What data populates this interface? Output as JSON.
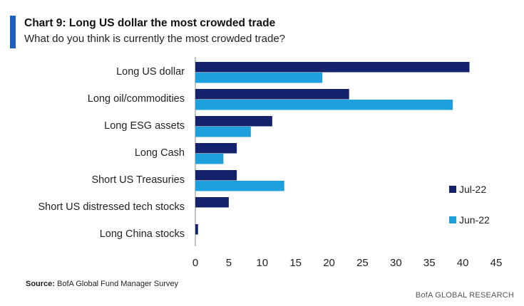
{
  "header": {
    "title": "Chart 9: Long US dollar the most crowded trade",
    "subtitle": "What do you think is currently the most crowded trade?"
  },
  "footer": {
    "source_label": "Source:",
    "source_text": "BofA Global Fund Manager Survey",
    "credit": "BofA GLOBAL RESEARCH"
  },
  "colors": {
    "jul22": "#13226b",
    "jun22": "#1ea0dc",
    "accent_bar": "#1f5fbf"
  },
  "chart_data": {
    "type": "bar",
    "orientation": "horizontal",
    "title": "Chart 9: Long US dollar the most crowded trade",
    "subtitle": "What do you think is currently the most crowded trade?",
    "categories": [
      "Long US dollar",
      "Long oil/commodities",
      "Long ESG assets",
      "Long Cash",
      "Short US Treasuries",
      "Short US distressed tech stocks",
      "Long China stocks"
    ],
    "series": [
      {
        "name": "Jul-22",
        "values": [
          41,
          23,
          11.5,
          6.2,
          6.2,
          5,
          0.4
        ]
      },
      {
        "name": "Jun-22",
        "values": [
          19,
          38.5,
          8.3,
          4.2,
          13.3,
          null,
          null
        ]
      }
    ],
    "xlim": [
      0,
      45
    ],
    "xticks": [
      "0",
      "5",
      "10",
      "15",
      "20",
      "25",
      "30",
      "35",
      "40",
      "45"
    ],
    "xlabel": "",
    "ylabel": "",
    "grid": false,
    "legend_position": "right"
  }
}
